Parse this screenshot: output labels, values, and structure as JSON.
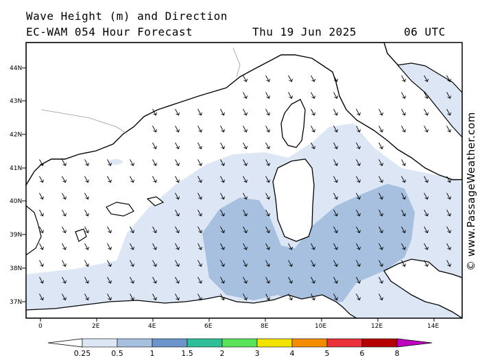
{
  "header": {
    "title": "Wave Height (m) and Direction",
    "subtitle": "EC-WAM 054 Hour Forecast",
    "date": "Thu 19 Jun 2025",
    "time": "06 UTC"
  },
  "credit": "© www.PassageWeather.com",
  "map": {
    "lat_labels": [
      "44N",
      "43N",
      "42N",
      "41N",
      "40N",
      "39N",
      "38N",
      "37N"
    ],
    "lon_labels": [
      "0",
      "2E",
      "4E",
      "6E",
      "8E",
      "10E",
      "12E",
      "14E"
    ],
    "wave_arrow_direction": "towards SSE",
    "colors": {
      "land": "#ffffff",
      "coast": "#000000",
      "sea_light": "#dde6f4",
      "sea_mid": "#a7c0e0"
    }
  },
  "scale": {
    "labels": [
      "0.25",
      "0.5",
      "1",
      "1.5",
      "2",
      "3",
      "4",
      "5",
      "6",
      "8"
    ],
    "colors": [
      "#ffffff",
      "#dde6f4",
      "#a7c0e0",
      "#6e95cb",
      "#2fbf98",
      "#5ae25a",
      "#f2e400",
      "#f38c00",
      "#e8313a",
      "#b40000",
      "#c100c1"
    ]
  }
}
